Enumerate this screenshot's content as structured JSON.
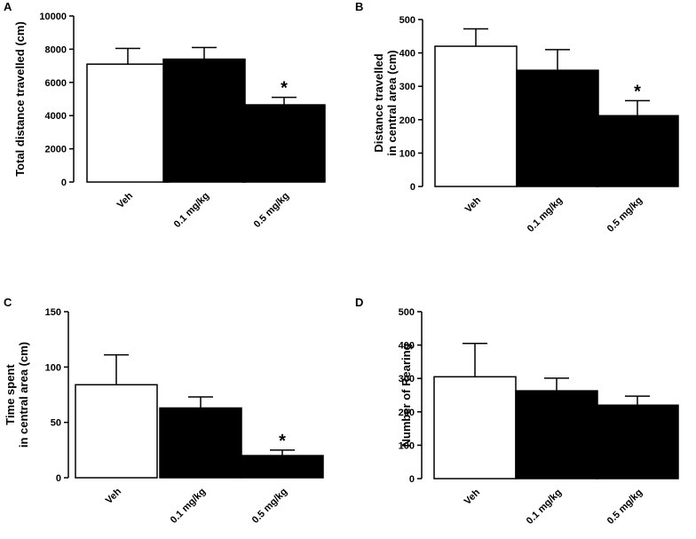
{
  "chart_data": [
    {
      "type": "bar",
      "panel": "A",
      "ylabel_lines": [
        "Total distance travelled (cm)"
      ],
      "categories": [
        "Veh",
        "0.1 mg/kg",
        "0.5 mg/kg"
      ],
      "values": [
        7100,
        7400,
        4650
      ],
      "errors": [
        950,
        700,
        450
      ],
      "fills": [
        "#ffffff",
        "#000000",
        "#000000"
      ],
      "significance": [
        "",
        "",
        "*"
      ],
      "ylim": [
        0,
        10000
      ],
      "yticks": [
        "0",
        "2000",
        "4000",
        "6000",
        "8000",
        "10000"
      ]
    },
    {
      "type": "bar",
      "panel": "B",
      "ylabel_lines": [
        "Distance travelled",
        "in central area (cm)"
      ],
      "categories": [
        "Veh",
        "0.1 mg/kg",
        "0.5 mg/kg"
      ],
      "values": [
        420,
        348,
        212
      ],
      "errors": [
        52,
        62,
        45
      ],
      "fills": [
        "#ffffff",
        "#000000",
        "#000000"
      ],
      "significance": [
        "",
        "",
        "*"
      ],
      "ylim": [
        0,
        500
      ],
      "yticks": [
        "0",
        "100",
        "200",
        "300",
        "400",
        "500"
      ]
    },
    {
      "type": "bar",
      "panel": "C",
      "ylabel_lines": [
        "Time spent",
        "in central area (cm)"
      ],
      "categories": [
        "Veh",
        "0.1 mg/kg",
        "0.5 mg/kg"
      ],
      "values": [
        84,
        63,
        20
      ],
      "errors": [
        27,
        10,
        5
      ],
      "fills": [
        "#ffffff",
        "#000000",
        "#000000"
      ],
      "significance": [
        "",
        "",
        "*"
      ],
      "ylim": [
        0,
        150
      ],
      "yticks": [
        "0",
        "50",
        "100",
        "150"
      ]
    },
    {
      "type": "bar",
      "panel": "D",
      "ylabel_lines": [
        "Number of Rearing"
      ],
      "categories": [
        "Veh",
        "0.1 mg/kg",
        "0.5  mg/kg"
      ],
      "values": [
        305,
        263,
        220
      ],
      "errors": [
        100,
        38,
        27
      ],
      "fills": [
        "#ffffff",
        "#000000",
        "#000000"
      ],
      "significance": [
        "",
        "",
        ""
      ],
      "ylim": [
        0,
        500
      ],
      "yticks": [
        "0",
        "100",
        "200",
        "300",
        "400",
        "500"
      ]
    }
  ]
}
